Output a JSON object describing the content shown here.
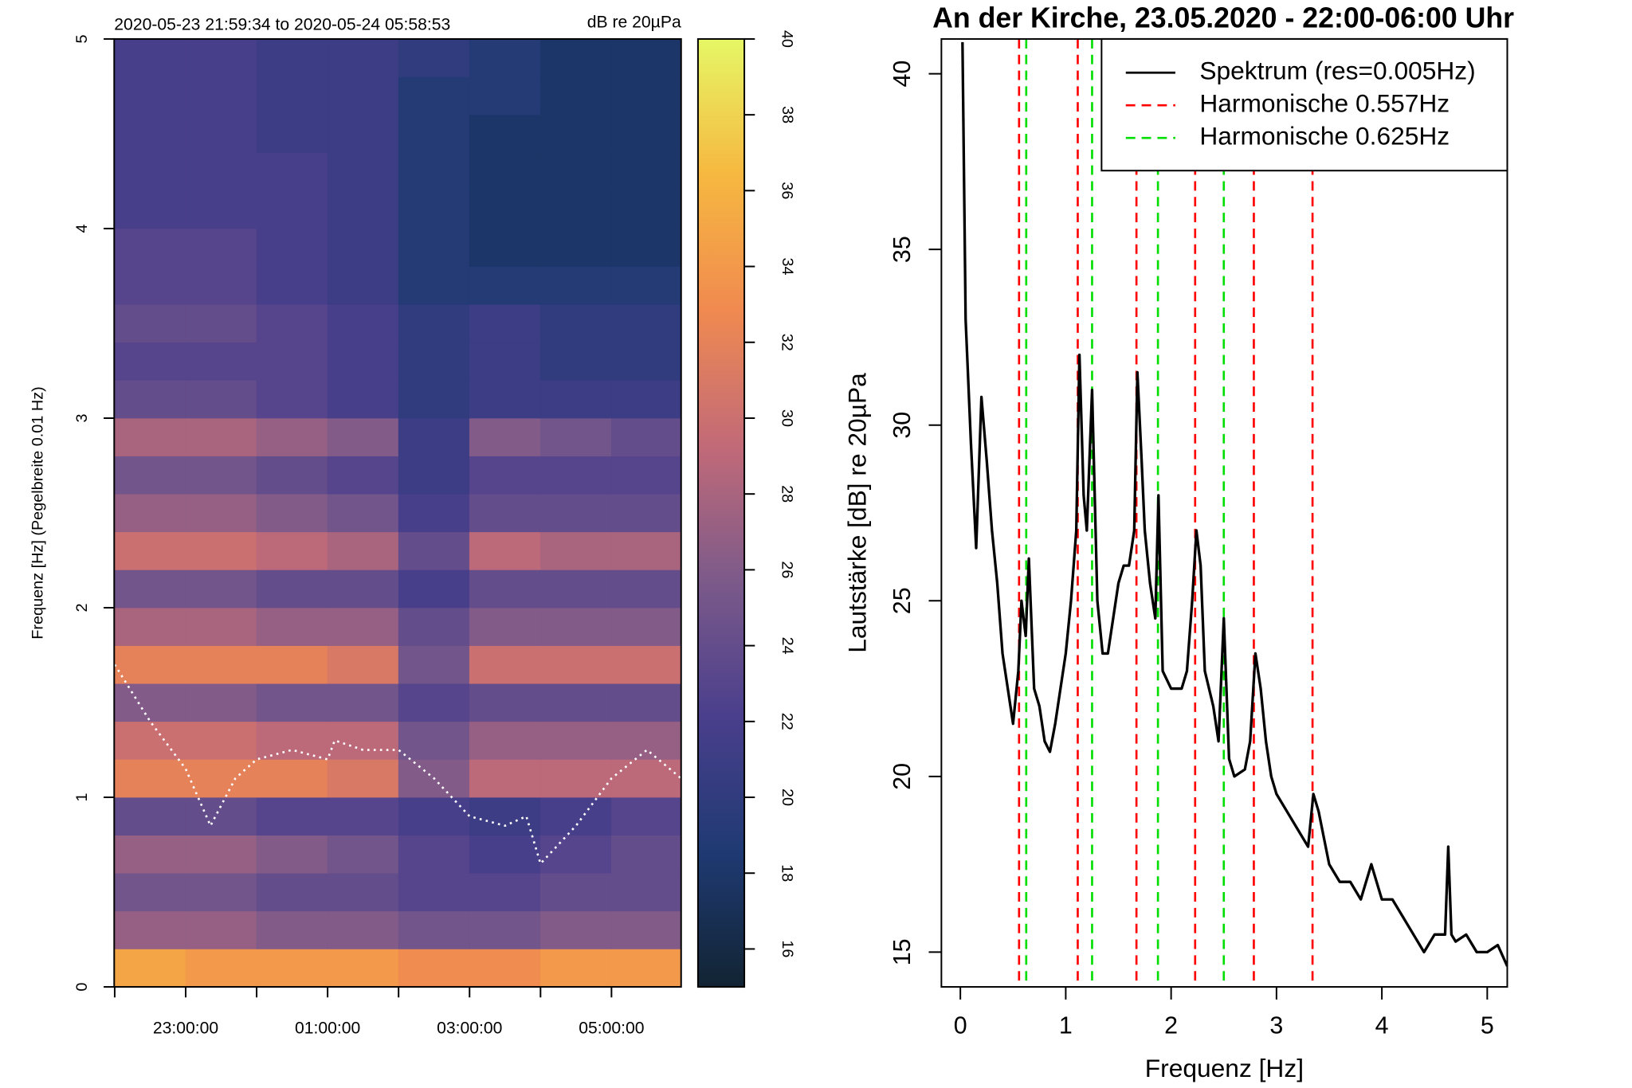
{
  "chart_data": [
    {
      "type": "heatmap",
      "subtitle_left": "2020-05-23 21:59:34 to 2020-05-24 05:58:53",
      "subtitle_right": "dB re 20µPa",
      "ylabel": "Frequenz [Hz] (Pegelbreite 0.01 Hz)",
      "xlim": [
        21.993,
        29.981
      ],
      "xticks": [
        {
          "value": 23,
          "label": "23:00:00"
        },
        {
          "value": 25,
          "label": "01:00:00"
        },
        {
          "value": 27,
          "label": "03:00:00"
        },
        {
          "value": 29,
          "label": "05:00:00"
        }
      ],
      "xminor_ticks": [
        22,
        24,
        26,
        28
      ],
      "ylim": [
        0,
        5
      ],
      "yticks": [
        0,
        1,
        2,
        3,
        4,
        5
      ],
      "xbins": [
        21.993,
        23,
        24,
        25,
        26,
        27,
        28,
        29,
        29.981
      ],
      "ybins": [
        0,
        0.2,
        0.4,
        0.6,
        0.8,
        1,
        1.2,
        1.4,
        1.6,
        1.8,
        2,
        2.2,
        2.4,
        2.6,
        2.8,
        3,
        3.2,
        3.4,
        3.6,
        3.8,
        4,
        4.2,
        4.4,
        4.6,
        4.8,
        5
      ],
      "z": [
        [
          35,
          34,
          34,
          34,
          33,
          33,
          34,
          34
        ],
        [
          27,
          27,
          26,
          26,
          25,
          25,
          26,
          26
        ],
        [
          25,
          25,
          24,
          24,
          23,
          23,
          24,
          24
        ],
        [
          27,
          27,
          26,
          25,
          23,
          22,
          23,
          24
        ],
        [
          24,
          24,
          23,
          23,
          22,
          21,
          22,
          23
        ],
        [
          32,
          32,
          32,
          31,
          26,
          29,
          29,
          29
        ],
        [
          30,
          30,
          29,
          29,
          25,
          27,
          27,
          27
        ],
        [
          26,
          26,
          25,
          25,
          23,
          24,
          24,
          24
        ],
        [
          32,
          32,
          32,
          31,
          25,
          30,
          30,
          30
        ],
        [
          28,
          28,
          27,
          27,
          24,
          26,
          26,
          26
        ],
        [
          25,
          25,
          24,
          24,
          22,
          24,
          24,
          24
        ],
        [
          30,
          30,
          29,
          28,
          24,
          29,
          28,
          28
        ],
        [
          27,
          27,
          26,
          25,
          22,
          24,
          24,
          24
        ],
        [
          25,
          25,
          24,
          23,
          21,
          23,
          23,
          23
        ],
        [
          28,
          28,
          27,
          26,
          21,
          26,
          25,
          24
        ],
        [
          24,
          24,
          23,
          22,
          20,
          21,
          21,
          21
        ],
        [
          23,
          23,
          23,
          22,
          20,
          21,
          20,
          20
        ],
        [
          24,
          24,
          23,
          22,
          20,
          21,
          20,
          20
        ],
        [
          23,
          23,
          22,
          21,
          19,
          19,
          19,
          19
        ],
        [
          23,
          23,
          22,
          21,
          19,
          18,
          18,
          18
        ],
        [
          22,
          22,
          22,
          21,
          19,
          18,
          18,
          18
        ],
        [
          22,
          22,
          22,
          21,
          19,
          18,
          18,
          18
        ],
        [
          22,
          22,
          21,
          21,
          19,
          18,
          18,
          18
        ],
        [
          22,
          22,
          21,
          21,
          19,
          19,
          18,
          18
        ],
        [
          22,
          22,
          21,
          21,
          20,
          19,
          18,
          18
        ]
      ],
      "zlim": [
        15,
        40
      ],
      "zticks": [
        16,
        18,
        20,
        22,
        24,
        26,
        28,
        30,
        32,
        34,
        36,
        38,
        40
      ],
      "colors": [
        "#122433",
        "#1f3a73",
        "#4a3f8c",
        "#7c5a8a",
        "#c26a78",
        "#f08a50",
        "#f6b840",
        "#e6f766"
      ],
      "trace_color": "#ffffff",
      "trace_x": [
        22,
        22.5,
        23,
        23.35,
        23.7,
        24,
        24.5,
        25,
        25.1,
        25.5,
        26,
        26.5,
        27,
        27.5,
        27.8,
        28,
        28.5,
        29,
        29.5,
        29.981
      ],
      "trace_values": [
        1.7,
        1.4,
        1.15,
        0.85,
        1.1,
        1.2,
        1.25,
        1.2,
        1.3,
        1.25,
        1.25,
        1.1,
        0.9,
        0.85,
        0.9,
        0.65,
        0.85,
        1.1,
        1.25,
        1.1
      ]
    },
    {
      "type": "line",
      "title": "An der Kirche, 23.05.2020 - 22:00-06:00 Uhr",
      "xlabel": "Frequenz [Hz]",
      "ylabel": "Lautstärke [dB] re 20µPa",
      "xlim": [
        -0.18,
        5.19
      ],
      "xticks": [
        0,
        1,
        2,
        3,
        4,
        5
      ],
      "ylim": [
        14.01,
        40.99
      ],
      "yticks": [
        15,
        20,
        25,
        30,
        35,
        40
      ],
      "legend": "top-right",
      "series": [
        {
          "name": "Spektrum (res=0.005Hz)",
          "color": "#000000",
          "x": [
            0.02,
            0.05,
            0.1,
            0.15,
            0.2,
            0.25,
            0.3,
            0.35,
            0.4,
            0.45,
            0.5,
            0.55,
            0.58,
            0.62,
            0.65,
            0.7,
            0.75,
            0.8,
            0.85,
            0.9,
            0.95,
            1.0,
            1.05,
            1.1,
            1.13,
            1.17,
            1.2,
            1.25,
            1.3,
            1.35,
            1.4,
            1.45,
            1.5,
            1.55,
            1.6,
            1.65,
            1.68,
            1.72,
            1.75,
            1.8,
            1.85,
            1.88,
            1.92,
            2.0,
            2.05,
            2.1,
            2.15,
            2.2,
            2.24,
            2.28,
            2.32,
            2.4,
            2.45,
            2.5,
            2.55,
            2.6,
            2.7,
            2.75,
            2.8,
            2.85,
            2.9,
            2.95,
            3.0,
            3.1,
            3.2,
            3.3,
            3.35,
            3.4,
            3.5,
            3.6,
            3.7,
            3.8,
            3.9,
            4.0,
            4.1,
            4.2,
            4.3,
            4.4,
            4.5,
            4.6,
            4.63,
            4.66,
            4.7,
            4.8,
            4.9,
            5.0,
            5.1,
            5.19
          ],
          "values": [
            40.9,
            33,
            29.5,
            26.5,
            30.8,
            29,
            27,
            25.5,
            23.5,
            22.5,
            21.5,
            23,
            25,
            24,
            26.2,
            22.5,
            22,
            21,
            20.7,
            21.5,
            22.5,
            23.5,
            25,
            27,
            32,
            28,
            27,
            31,
            25,
            23.5,
            23.5,
            24.5,
            25.5,
            26,
            26,
            27,
            31.5,
            29,
            27,
            25.5,
            24.5,
            28,
            23,
            22.5,
            22.5,
            22.5,
            23,
            25,
            27,
            26,
            23,
            22,
            21,
            24.5,
            20.5,
            20,
            20.2,
            21,
            23.5,
            22.5,
            21,
            20,
            19.5,
            19,
            18.5,
            18,
            19.5,
            19,
            17.5,
            17,
            17,
            16.5,
            17.5,
            16.5,
            16.5,
            16,
            15.5,
            15,
            15.5,
            15.5,
            18,
            15.5,
            15.3,
            15.5,
            15,
            15,
            15.2,
            14.6
          ]
        },
        {
          "name": "Harmonische 0.557Hz",
          "color": "#ff0000",
          "dashed": true,
          "xpos": [
            0.557,
            1.114,
            1.671,
            2.228,
            2.785,
            3.342
          ]
        },
        {
          "name": "Harmonische 0.625Hz",
          "color": "#00dd00",
          "dashed": true,
          "xpos": [
            0.625,
            1.25,
            1.875,
            2.5
          ]
        }
      ]
    }
  ]
}
